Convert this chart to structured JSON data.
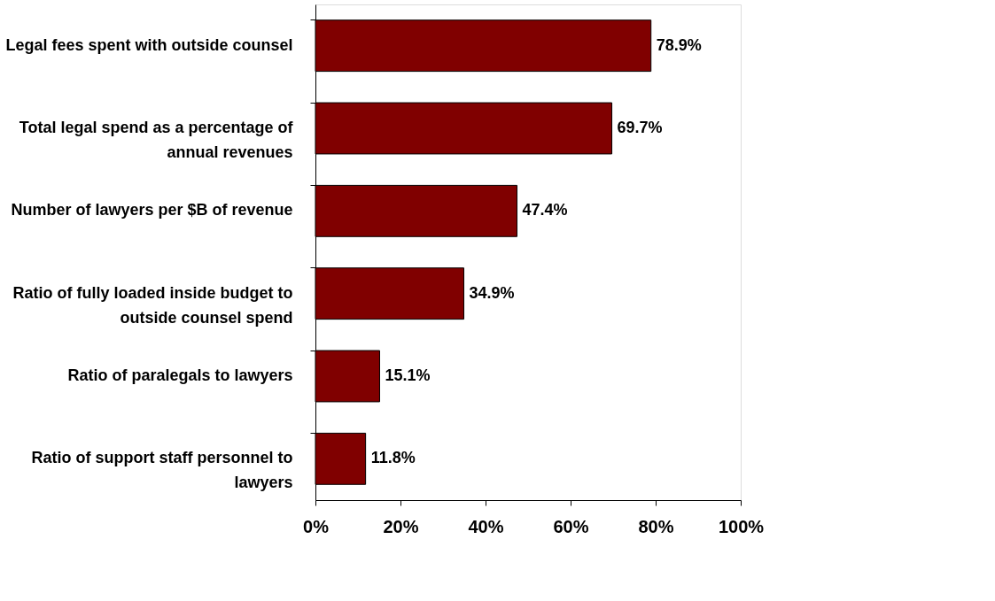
{
  "chart_data": {
    "type": "bar",
    "orientation": "horizontal",
    "categories": [
      "Legal fees spent with outside counsel",
      "Total legal spend as a percentage of annual revenues",
      "Number of lawyers per $B of revenue",
      "Ratio of fully loaded inside budget to outside counsel spend",
      "Ratio of paralegals to lawyers",
      "Ratio of support staff personnel to lawyers"
    ],
    "values": [
      78.9,
      69.7,
      47.4,
      34.9,
      15.1,
      11.8
    ],
    "value_labels": [
      "78.9%",
      "69.7%",
      "47.4%",
      "34.9%",
      "15.1%",
      "11.8%"
    ],
    "color": "#800000",
    "xlim": [
      0,
      100
    ],
    "xticks": [
      {
        "value": 0,
        "label": "0%"
      },
      {
        "value": 20,
        "label": "20%"
      },
      {
        "value": 40,
        "label": "40%"
      },
      {
        "value": 60,
        "label": "60%"
      },
      {
        "value": 80,
        "label": "80%"
      },
      {
        "value": 100,
        "label": "100%"
      }
    ],
    "grid": false
  }
}
